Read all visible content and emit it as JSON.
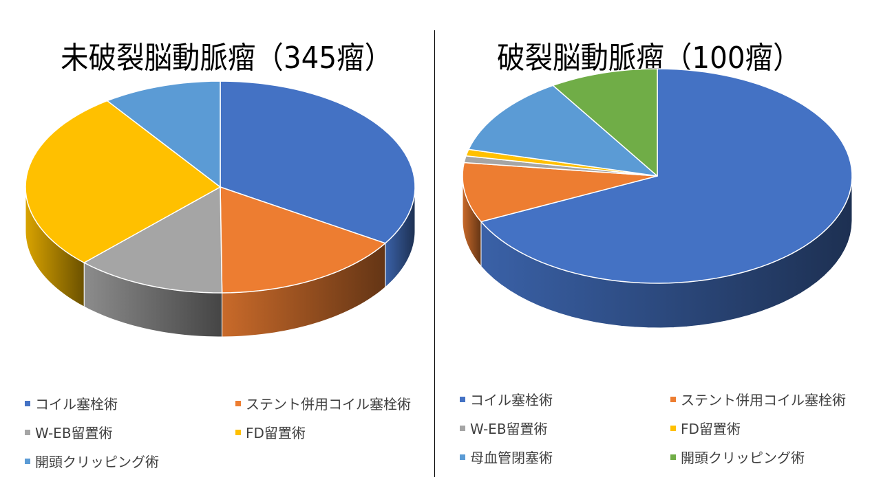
{
  "chart_data": [
    {
      "type": "pie",
      "title": "未破裂脳動脈瘤（345瘤）",
      "slices": [
        {
          "label": "コイル塞栓術",
          "value": 117,
          "color": "#4472C4"
        },
        {
          "label": "ステント併用コイル塞栓術",
          "value": 55,
          "color": "#ED7D31"
        },
        {
          "label": "W-EB留置術",
          "value": 43,
          "color": "#A5A5A5"
        },
        {
          "label": "FD留置術",
          "value": 96,
          "color": "#FFC000"
        },
        {
          "label": "開頭クリッピング術",
          "value": 34,
          "color": "#5B9BD5"
        }
      ]
    },
    {
      "type": "pie",
      "title": "破裂脳動脈瘤（100瘤）",
      "slices": [
        {
          "label": "コイル塞栓術",
          "value": 68,
          "color": "#4472C4"
        },
        {
          "label": "ステント併用コイル塞栓術",
          "value": 9,
          "color": "#ED7D31"
        },
        {
          "label": "W-EB留置術",
          "value": 1,
          "color": "#A5A5A5"
        },
        {
          "label": "FD留置術",
          "value": 1,
          "color": "#FFC000"
        },
        {
          "label": "母血管閉塞術",
          "value": 12,
          "color": "#5B9BD5"
        },
        {
          "label": "開頭クリッピング術",
          "value": 9,
          "color": "#70AD47"
        }
      ]
    }
  ]
}
